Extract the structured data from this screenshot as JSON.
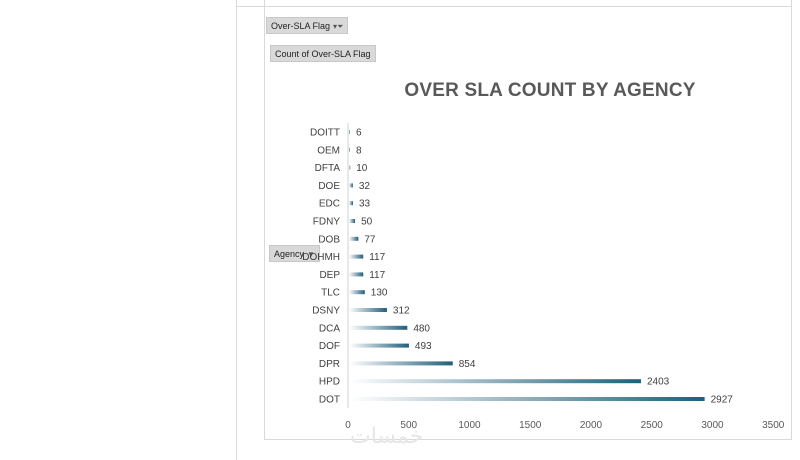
{
  "pivot": {
    "filter_label": "Over-SLA Flag",
    "filter_icon": "filter-dropdown-icon",
    "values_label": "Count of Over-SLA Flag",
    "axis_field_label": "Agency",
    "axis_field_icon": "dropdown-arrow-icon"
  },
  "watermark": "خمسات",
  "chart_data": {
    "type": "bar",
    "orientation": "horizontal",
    "title": "OVER SLA COUNT BY AGENCY",
    "xlabel": "",
    "ylabel": "",
    "categories": [
      "DOITT",
      "OEM",
      "DFTA",
      "DOE",
      "EDC",
      "FDNY",
      "DOB",
      "DOHMH",
      "DEP",
      "TLC",
      "DSNY",
      "DCA",
      "DOF",
      "DPR",
      "HPD",
      "DOT"
    ],
    "values": [
      6,
      8,
      10,
      32,
      33,
      50,
      77,
      117,
      117,
      130,
      312,
      480,
      493,
      854,
      2403,
      2927
    ],
    "xlim": [
      0,
      3500
    ],
    "xticks": [
      0,
      500,
      1000,
      1500,
      2000,
      2500,
      3000,
      3500
    ],
    "grid": false,
    "legend": "none",
    "data_labels": true,
    "bar_color_start": "#ffffff",
    "bar_color_end": "#1f5f7a"
  }
}
